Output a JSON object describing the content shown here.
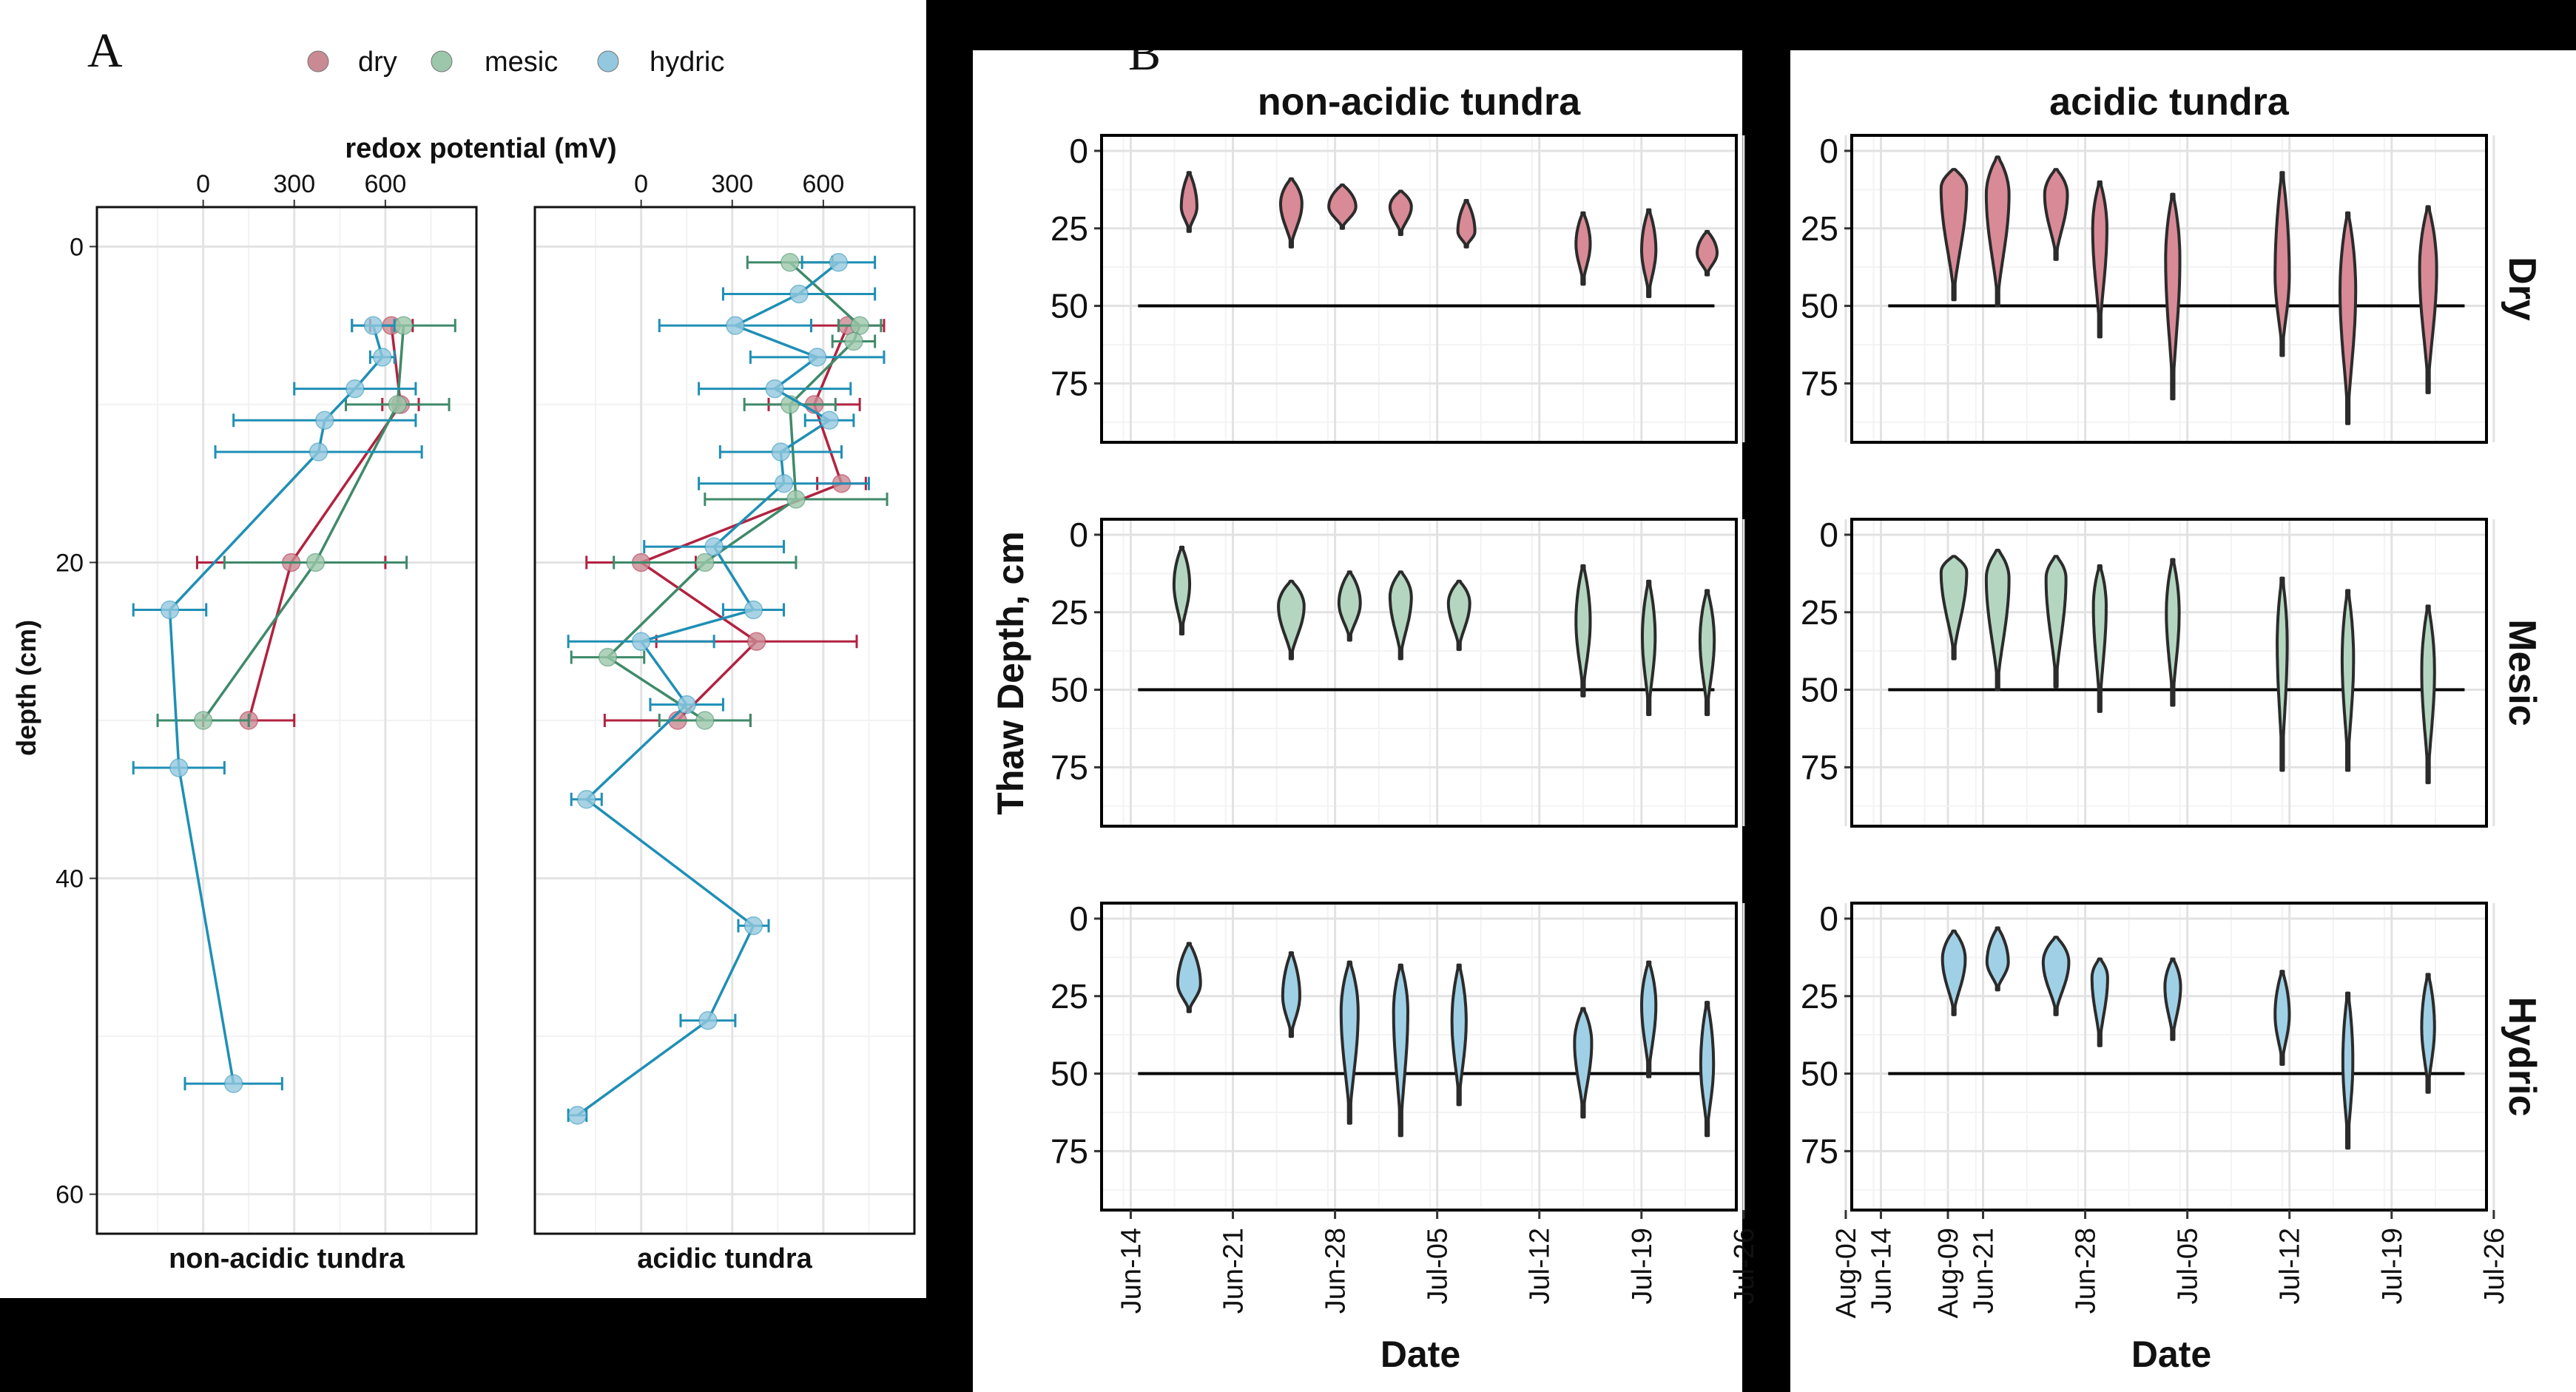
{
  "panel_a": {
    "letter": "A",
    "legend": [
      {
        "key": "dry",
        "label": "dry",
        "color": "#c98a94"
      },
      {
        "key": "mesic",
        "label": "mesic",
        "color": "#9cc7aa"
      },
      {
        "key": "hydric",
        "label": "hydric",
        "color": "#93c8de"
      }
    ],
    "top_axis_label": "redox potential (mV)",
    "y_axis_label": "depth (cm)",
    "line_colors": {
      "dry": "#b22240",
      "mesic": "#3f8a6a",
      "hydric": "#1f8fb5"
    }
  },
  "panel_b": {
    "letter": "B",
    "y_axis_label": "Thaw Depth, cm",
    "x_axis_label": "Date",
    "fill_colors": {
      "Dry": "#d88a96",
      "Mesic": "#b4d6c0",
      "Hydric": "#9fd0e6"
    }
  },
  "chart_data": [
    {
      "type": "scatter",
      "panels": [
        "non-acidic tundra",
        "acidic tundra"
      ],
      "xlabel": "redox potential (mV)",
      "ylabel": "depth (cm)",
      "x_ticks": [
        0,
        300,
        600
      ],
      "y_ticks": [
        0,
        20,
        40,
        60
      ],
      "xlim": [
        -350,
        900
      ],
      "ylim": [
        62.5,
        -2.5
      ],
      "legend": [
        "dry",
        "mesic",
        "hydric"
      ],
      "legend_position": "top",
      "grid": true,
      "series": {
        "non-acidic tundra": {
          "dry": [
            {
              "x": 620,
              "y": 5,
              "err": 70
            },
            {
              "x": 650,
              "y": 10,
              "err": 60
            },
            {
              "x": 290,
              "y": 20,
              "err": 310
            },
            {
              "x": 150,
              "y": 30,
              "err": 150
            }
          ],
          "mesic": [
            {
              "x": 660,
              "y": 5,
              "err": 170
            },
            {
              "x": 640,
              "y": 10,
              "err": 170
            },
            {
              "x": 370,
              "y": 20,
              "err": 300
            },
            {
              "x": 0,
              "y": 30,
              "err": 150
            }
          ],
          "hydric": [
            {
              "x": 560,
              "y": 5,
              "err": 70
            },
            {
              "x": 590,
              "y": 7,
              "err": 40
            },
            {
              "x": 500,
              "y": 9,
              "err": 200
            },
            {
              "x": 400,
              "y": 11,
              "err": 300
            },
            {
              "x": 380,
              "y": 13,
              "err": 340
            },
            {
              "x": -110,
              "y": 23,
              "err": 120
            },
            {
              "x": -80,
              "y": 33,
              "err": 150
            },
            {
              "x": 100,
              "y": 53,
              "err": 160
            }
          ]
        },
        "acidic tundra": {
          "dry": [
            {
              "x": 680,
              "y": 5,
              "err": 120
            },
            {
              "x": 570,
              "y": 10,
              "err": 150
            },
            {
              "x": 660,
              "y": 15,
              "err": 80
            },
            {
              "x": 0,
              "y": 20,
              "err": 180
            },
            {
              "x": 380,
              "y": 25,
              "err": 330
            },
            {
              "x": 120,
              "y": 30,
              "err": 240
            }
          ],
          "mesic": [
            {
              "x": 490,
              "y": 1,
              "err": 140
            },
            {
              "x": 720,
              "y": 5,
              "err": 70
            },
            {
              "x": 700,
              "y": 6,
              "err": 70
            },
            {
              "x": 490,
              "y": 10,
              "err": 150
            },
            {
              "x": 510,
              "y": 16,
              "err": 300
            },
            {
              "x": 210,
              "y": 20,
              "err": 300
            },
            {
              "x": -110,
              "y": 26,
              "err": 120
            },
            {
              "x": 210,
              "y": 30,
              "err": 150
            }
          ],
          "hydric": [
            {
              "x": 650,
              "y": 1,
              "err": 120
            },
            {
              "x": 520,
              "y": 3,
              "err": 250
            },
            {
              "x": 310,
              "y": 5,
              "err": 250
            },
            {
              "x": 580,
              "y": 7,
              "err": 220
            },
            {
              "x": 440,
              "y": 9,
              "err": 250
            },
            {
              "x": 620,
              "y": 11,
              "err": 80
            },
            {
              "x": 460,
              "y": 13,
              "err": 200
            },
            {
              "x": 470,
              "y": 15,
              "err": 280
            },
            {
              "x": 240,
              "y": 19,
              "err": 230
            },
            {
              "x": 370,
              "y": 23,
              "err": 100
            },
            {
              "x": 0,
              "y": 25,
              "err": 240
            },
            {
              "x": 150,
              "y": 29,
              "err": 120
            },
            {
              "x": -180,
              "y": 35,
              "err": 50
            },
            {
              "x": 370,
              "y": 43,
              "err": 50
            },
            {
              "x": 220,
              "y": 49,
              "err": 90
            },
            {
              "x": -210,
              "y": 55,
              "err": 30
            }
          ]
        }
      }
    },
    {
      "type": "violin",
      "columns": [
        "non-acidic tundra",
        "acidic tundra"
      ],
      "rows": [
        "Dry",
        "Mesic",
        "Hydric"
      ],
      "xlabel": "Date",
      "ylabel": "Thaw Depth, cm",
      "x_ticks": [
        "Jun-14",
        "Jun-21",
        "Jun-28",
        "Jul-05",
        "Jul-12",
        "Jul-19",
        "Jul-26",
        "Aug-02",
        "Aug-09"
      ],
      "y_ticks": [
        0,
        25,
        50,
        75
      ],
      "ylim": [
        94,
        -5
      ],
      "reference_line_depth": 50,
      "grid": true,
      "violins_format": "[day offset from Jun-14, min depth, max depth, depth of max width, relative width]",
      "violins": {
        "non-acidic tundra": {
          "Dry": [
            [
              4,
              7,
              26,
              18,
              0.55
            ],
            [
              11,
              9,
              31,
              17,
              0.75
            ],
            [
              14.5,
              11,
              25,
              18,
              0.95
            ],
            [
              18.5,
              13,
              27,
              18,
              0.75
            ],
            [
              23,
              16,
              31,
              26,
              0.6
            ],
            [
              31,
              20,
              43,
              30,
              0.5
            ],
            [
              35.5,
              19,
              47,
              32,
              0.5
            ],
            [
              39.5,
              26,
              40,
              33,
              0.7
            ]
          ],
          "Mesic": [
            [
              3.5,
              4,
              32,
              16,
              0.55
            ],
            [
              11,
              15,
              40,
              23,
              0.9
            ],
            [
              15,
              12,
              34,
              22,
              0.75
            ],
            [
              18.5,
              12,
              40,
              20,
              0.75
            ],
            [
              22.5,
              15,
              37,
              22,
              0.75
            ],
            [
              31,
              10,
              52,
              28,
              0.5
            ],
            [
              35.5,
              15,
              58,
              33,
              0.45
            ],
            [
              39.5,
              18,
              58,
              34,
              0.5
            ]
          ],
          "Hydric": [
            [
              4,
              8,
              30,
              21,
              0.8
            ],
            [
              11,
              11,
              38,
              25,
              0.6
            ],
            [
              15,
              14,
              66,
              30,
              0.6
            ],
            [
              18.5,
              15,
              70,
              30,
              0.5
            ],
            [
              22.5,
              15,
              60,
              33,
              0.5
            ],
            [
              31,
              29,
              64,
              40,
              0.6
            ],
            [
              35.5,
              14,
              51,
              28,
              0.5
            ],
            [
              39.5,
              27,
              70,
              47,
              0.45
            ]
          ]
        },
        "acidic tundra": {
          "Dry": [
            [
              5,
              6,
              48,
              12,
              0.9
            ],
            [
              8,
              2,
              50,
              14,
              0.8
            ],
            [
              12,
              6,
              35,
              14,
              0.8
            ],
            [
              15,
              10,
              60,
              25,
              0.5
            ],
            [
              20,
              14,
              80,
              35,
              0.5
            ],
            [
              27.5,
              7,
              66,
              40,
              0.5
            ],
            [
              32,
              20,
              88,
              45,
              0.55
            ],
            [
              37.5,
              18,
              78,
              38,
              0.6
            ]
          ],
          "Mesic": [
            [
              5,
              7,
              40,
              12,
              0.9
            ],
            [
              8,
              5,
              50,
              14,
              0.8
            ],
            [
              12,
              7,
              49,
              14,
              0.7
            ],
            [
              15,
              10,
              57,
              23,
              0.45
            ],
            [
              20,
              8,
              55,
              25,
              0.45
            ],
            [
              27.5,
              14,
              76,
              35,
              0.35
            ],
            [
              32,
              18,
              76,
              40,
              0.4
            ],
            [
              37.5,
              23,
              80,
              44,
              0.45
            ]
          ],
          "Hydric": [
            [
              5,
              4,
              31,
              13,
              0.8
            ],
            [
              8,
              3,
              23,
              14,
              0.75
            ],
            [
              12,
              6,
              31,
              14,
              0.9
            ],
            [
              15,
              13,
              41,
              19,
              0.55
            ],
            [
              20,
              13,
              39,
              22,
              0.55
            ],
            [
              27.5,
              17,
              47,
              31,
              0.5
            ],
            [
              32,
              24,
              74,
              46,
              0.35
            ],
            [
              37.5,
              18,
              56,
              35,
              0.45
            ]
          ]
        }
      }
    }
  ]
}
